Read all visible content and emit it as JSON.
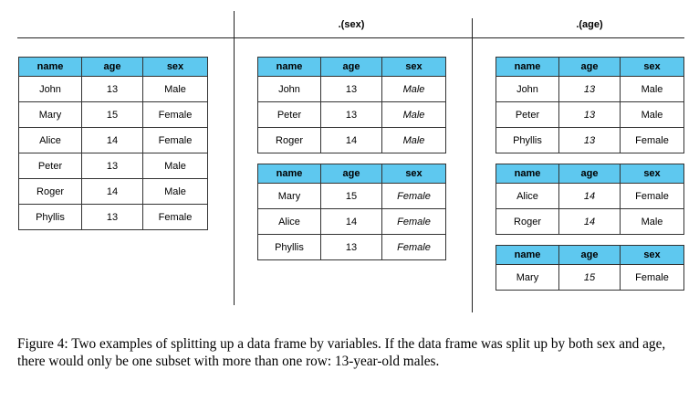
{
  "headers": [
    "name",
    "age",
    "sex"
  ],
  "original": {
    "rows": [
      [
        "John",
        "13",
        "Male"
      ],
      [
        "Mary",
        "15",
        "Female"
      ],
      [
        "Alice",
        "14",
        "Female"
      ],
      [
        "Peter",
        "13",
        "Male"
      ],
      [
        "Roger",
        "14",
        "Male"
      ],
      [
        "Phyllis",
        "13",
        "Female"
      ]
    ]
  },
  "split_sex": {
    "label": ".(sex)",
    "groups": [
      {
        "rows": [
          [
            "John",
            "13",
            "Male"
          ],
          [
            "Peter",
            "13",
            "Male"
          ],
          [
            "Roger",
            "14",
            "Male"
          ]
        ]
      },
      {
        "rows": [
          [
            "Mary",
            "15",
            "Female"
          ],
          [
            "Alice",
            "14",
            "Female"
          ],
          [
            "Phyllis",
            "13",
            "Female"
          ]
        ]
      }
    ]
  },
  "split_age": {
    "label": ".(age)",
    "groups": [
      {
        "rows": [
          [
            "John",
            "13",
            "Male"
          ],
          [
            "Peter",
            "13",
            "Male"
          ],
          [
            "Phyllis",
            "13",
            "Female"
          ]
        ]
      },
      {
        "rows": [
          [
            "Alice",
            "14",
            "Female"
          ],
          [
            "Roger",
            "14",
            "Male"
          ]
        ]
      },
      {
        "rows": [
          [
            "Mary",
            "15",
            "Female"
          ]
        ]
      }
    ]
  },
  "caption": "Figure 4: Two examples of splitting up a data frame by variables. If the data frame was split up by both sex and age, there would only be one subset with more than one row: 13-year-old males."
}
